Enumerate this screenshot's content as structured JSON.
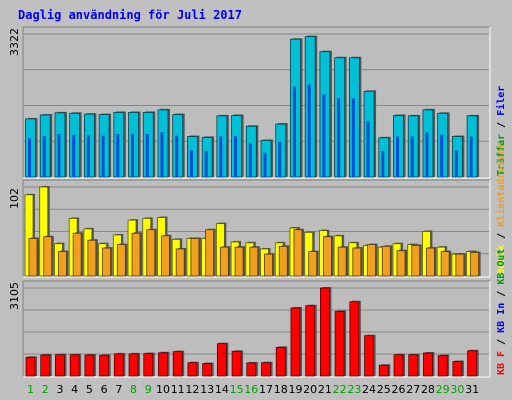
{
  "chart_data": {
    "type": "bar",
    "title": "Daglig användning för Juli 2017",
    "colors": {
      "background": "#c0c0c0",
      "panel": "#bdbdbd",
      "grid": "#888888",
      "hits": "#00c0d8",
      "files": "#0050d0",
      "sites": "#f0a020",
      "visits": "#ffff00",
      "kbytes": "#ff0000",
      "title": "#0000ff",
      "weekday_label": "#000000",
      "weekend_label": "#00a000"
    },
    "days": [
      "1",
      "2",
      "3",
      "4",
      "5",
      "6",
      "7",
      "8",
      "9",
      "10",
      "11",
      "12",
      "13",
      "14",
      "15",
      "16",
      "17",
      "18",
      "19",
      "20",
      "21",
      "22",
      "23",
      "24",
      "25",
      "26",
      "27",
      "28",
      "29",
      "30",
      "31"
    ],
    "weekend_days": [
      "1",
      "2",
      "8",
      "9",
      "15",
      "16",
      "22",
      "23",
      "29",
      "30"
    ],
    "panels": [
      {
        "id": "hits",
        "ymax_label": "3322",
        "ylim": [
          0,
          3322
        ],
        "legend": [
          {
            "text": "Träffar",
            "color": "#00a000"
          },
          {
            "text": " / ",
            "color": "#000000"
          },
          {
            "text": "Filer",
            "color": "#0000ff"
          }
        ],
        "series": [
          {
            "name": "Träffar",
            "color": "#00c0d8",
            "values": [
              1350,
              1440,
              1490,
              1480,
              1460,
              1450,
              1500,
              1500,
              1500,
              1560,
              1450,
              940,
              920,
              1420,
              1430,
              1180,
              850,
              1230,
              3200,
              3260,
              2910,
              2770,
              2770,
              1990,
              910,
              1430,
              1420,
              1560,
              1480,
              940,
              1420
            ]
          },
          {
            "name": "Filer",
            "color": "#0050d0",
            "values": [
              900,
              950,
              1000,
              980,
              970,
              960,
              1000,
              1000,
              1000,
              1040,
              960,
              620,
              600,
              940,
              950,
              780,
              560,
              820,
              2100,
              2150,
              1920,
              1830,
              1830,
              1300,
              600,
              940,
              940,
              1040,
              980,
              620,
              940
            ]
          }
        ]
      },
      {
        "id": "sites",
        "ymax_label": "102",
        "ylim": [
          0,
          102
        ],
        "legend": [
          {
            "text": "Besök",
            "color": "#ffff00"
          },
          {
            "text": " / ",
            "color": "#000000"
          },
          {
            "text": "Klientadresser",
            "color": "#f0a020"
          }
        ],
        "series": [
          {
            "name": "Besök",
            "color": "#ffff00",
            "values": [
              93,
              106,
              37,
              66,
              54,
              37,
              47,
              64,
              66,
              67,
              42,
              43,
              43,
              60,
              39,
              38,
              31,
              38,
              55,
              50,
              52,
              46,
              38,
              35,
              33,
              37,
              36,
              51,
              33,
              25,
              28
            ]
          },
          {
            "name": "Klientadresser",
            "color": "#f0a020",
            "values": [
              43,
              45,
              28,
              49,
              41,
              32,
              36,
              49,
              53,
              46,
              31,
              43,
              53,
              33,
              33,
              33,
              25,
              34,
              53,
              28,
              45,
              33,
              32,
              36,
              34,
              29,
              35,
              32,
              28,
              25,
              27
            ]
          }
        ]
      },
      {
        "id": "kbytes",
        "ymax_label": "3105",
        "ylim": [
          0,
          3105
        ],
        "legend": [
          {
            "text": "KB F",
            "color": "#ff0000"
          },
          {
            "text": " / ",
            "color": "#000000"
          },
          {
            "text": "KB In",
            "color": "#0000ff"
          },
          {
            "text": " / ",
            "color": "#000000"
          },
          {
            "text": "KB Out",
            "color": "#00a000"
          }
        ],
        "series": [
          {
            "name": "KB F",
            "color": "#ff0000",
            "values": [
              660,
              740,
              750,
              750,
              740,
              730,
              780,
              780,
              790,
              820,
              860,
              470,
              440,
              1140,
              870,
              460,
              470,
              1010,
              2400,
              2480,
              3105,
              2280,
              2620,
              1420,
              380,
              750,
              750,
              810,
              720,
              510,
              890
            ]
          }
        ]
      }
    ]
  }
}
